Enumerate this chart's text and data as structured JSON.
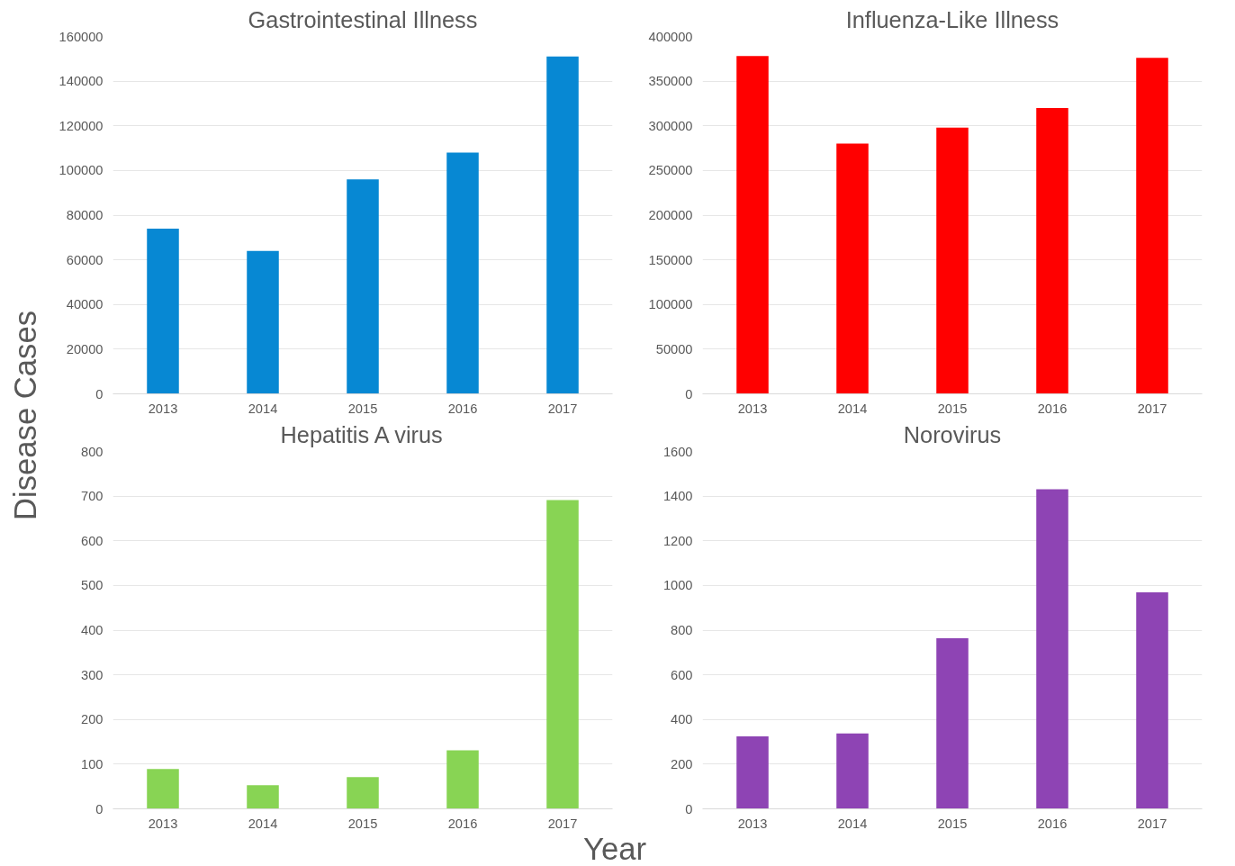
{
  "chart_data": [
    {
      "type": "bar",
      "title": "Gastrointestinal Illness",
      "ylabel": "Disease Cases",
      "categories": [
        "2013",
        "2014",
        "2015",
        "2016",
        "2017"
      ],
      "series": [
        {
          "color": "#0788d3",
          "values": [
            74000,
            64000,
            96000,
            108000,
            151000
          ]
        }
      ],
      "ylim": [
        0,
        160000
      ],
      "yticks": [
        0,
        20000,
        40000,
        60000,
        80000,
        100000,
        120000,
        140000,
        160000
      ],
      "grid": "y"
    },
    {
      "type": "bar",
      "title": "Influenza-Like Illness",
      "categories": [
        "2013",
        "2014",
        "2015",
        "2016",
        "2017"
      ],
      "series": [
        {
          "color": "#ff0000",
          "values": [
            378000,
            280000,
            298000,
            320000,
            376000
          ]
        }
      ],
      "ylim": [
        0,
        400000
      ],
      "yticks": [
        0,
        50000,
        100000,
        150000,
        200000,
        250000,
        300000,
        350000,
        400000
      ],
      "grid": "y"
    },
    {
      "type": "bar",
      "title": "Hepatitis A virus",
      "xlabel": "Year",
      "categories": [
        "2013",
        "2014",
        "2015",
        "2016",
        "2017"
      ],
      "series": [
        {
          "color": "#88d454",
          "values": [
            89,
            53,
            71,
            131,
            691
          ]
        }
      ],
      "ylim": [
        0,
        800
      ],
      "yticks": [
        0,
        100,
        200,
        300,
        400,
        500,
        600,
        700,
        800
      ],
      "grid": "y"
    },
    {
      "type": "bar",
      "title": "Norovirus",
      "categories": [
        "2013",
        "2014",
        "2015",
        "2016",
        "2017"
      ],
      "series": [
        {
          "color": "#8e44b4",
          "values": [
            324,
            338,
            764,
            1431,
            969
          ]
        }
      ],
      "ylim": [
        0,
        1600
      ],
      "yticks": [
        0,
        200,
        400,
        600,
        800,
        1000,
        1200,
        1400,
        1600
      ],
      "grid": "y"
    }
  ]
}
